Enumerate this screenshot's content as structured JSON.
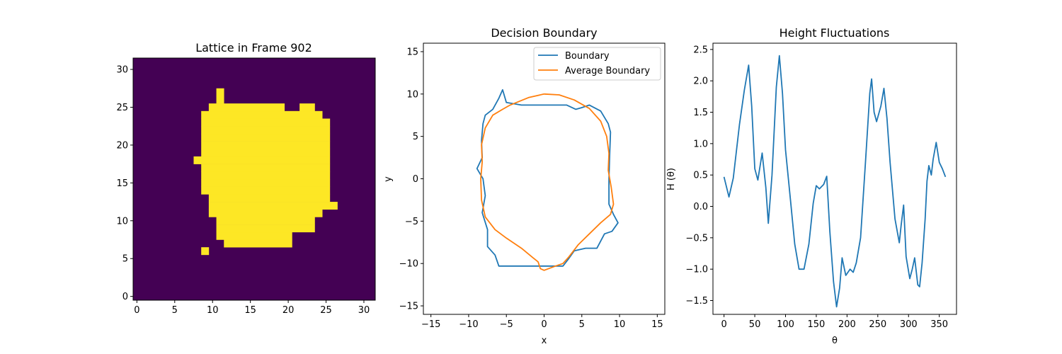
{
  "chart_data": [
    {
      "type": "heatmap",
      "title": "Lattice in Frame 902",
      "xlabel": "",
      "ylabel": "",
      "xlim": [
        -0.5,
        31.5
      ],
      "ylim": [
        -0.5,
        31.5
      ],
      "xticks": [
        0,
        5,
        10,
        15,
        20,
        25,
        30
      ],
      "yticks": [
        0,
        5,
        10,
        15,
        20,
        25,
        30
      ],
      "colors": {
        "empty": "#440154",
        "filled": "#fde725"
      },
      "filled_runs": [
        {
          "row": 6,
          "from": 9,
          "to": 9
        },
        {
          "row": 7,
          "from": 12,
          "to": 20
        },
        {
          "row": 8,
          "from": 11,
          "to": 20
        },
        {
          "row": 9,
          "from": 11,
          "to": 23
        },
        {
          "row": 10,
          "from": 11,
          "to": 23
        },
        {
          "row": 11,
          "from": 10,
          "to": 24
        },
        {
          "row": 12,
          "from": 10,
          "to": 26
        },
        {
          "row": 13,
          "from": 10,
          "to": 25
        },
        {
          "row": 14,
          "from": 9,
          "to": 25
        },
        {
          "row": 15,
          "from": 9,
          "to": 25
        },
        {
          "row": 16,
          "from": 9,
          "to": 25
        },
        {
          "row": 17,
          "from": 9,
          "to": 25
        },
        {
          "row": 18,
          "from": 8,
          "to": 25
        },
        {
          "row": 19,
          "from": 9,
          "to": 25
        },
        {
          "row": 20,
          "from": 9,
          "to": 25
        },
        {
          "row": 21,
          "from": 9,
          "to": 25
        },
        {
          "row": 22,
          "from": 9,
          "to": 25
        },
        {
          "row": 23,
          "from": 9,
          "to": 25
        },
        {
          "row": 24,
          "from": 9,
          "to": 24
        },
        {
          "row": 25,
          "from": 10,
          "to": 19
        },
        {
          "row": 25,
          "from": 22,
          "to": 23
        },
        {
          "row": 26,
          "from": 11,
          "to": 11
        },
        {
          "row": 27,
          "from": 11,
          "to": 11
        }
      ]
    },
    {
      "type": "line",
      "title": "Decision Boundary",
      "xlabel": "x",
      "ylabel": "y",
      "xlim": [
        -16,
        16
      ],
      "ylim": [
        -16,
        16
      ],
      "xticks": [
        -15,
        -10,
        -5,
        0,
        5,
        10,
        15
      ],
      "yticks": [
        -15,
        -10,
        -5,
        0,
        5,
        10,
        15
      ],
      "legend_position": "top-right",
      "series": [
        {
          "name": "Boundary",
          "color": "#1f77b4",
          "points": [
            [
              0,
              8.7
            ],
            [
              3,
              8.7
            ],
            [
              4.2,
              8.2
            ],
            [
              5,
              8.4
            ],
            [
              6,
              8.7
            ],
            [
              7.5,
              8.0
            ],
            [
              8.5,
              6.5
            ],
            [
              8.8,
              5.5
            ],
            [
              8.7,
              3
            ],
            [
              8.6,
              0
            ],
            [
              8.6,
              -3
            ],
            [
              9.2,
              -4.2
            ],
            [
              9.8,
              -5.2
            ],
            [
              9,
              -6.2
            ],
            [
              8,
              -6.5
            ],
            [
              7,
              -8.2
            ],
            [
              5.5,
              -8.2
            ],
            [
              4,
              -8.5
            ],
            [
              3.2,
              -9.5
            ],
            [
              2.5,
              -10.3
            ],
            [
              0,
              -10.3
            ],
            [
              -3,
              -10.3
            ],
            [
              -6,
              -10.3
            ],
            [
              -6.5,
              -9
            ],
            [
              -7.5,
              -8
            ],
            [
              -7.5,
              -6
            ],
            [
              -8.2,
              -4
            ],
            [
              -7.8,
              -2
            ],
            [
              -8.1,
              0
            ],
            [
              -8.9,
              1.2
            ],
            [
              -8.2,
              2.5
            ],
            [
              -8.3,
              4.5
            ],
            [
              -8.1,
              6.5
            ],
            [
              -7.8,
              7.5
            ],
            [
              -6.8,
              8.2
            ],
            [
              -6,
              9.5
            ],
            [
              -5.5,
              10.5
            ],
            [
              -5,
              9.0
            ],
            [
              -3,
              8.7
            ],
            [
              0,
              8.7
            ]
          ]
        },
        {
          "name": "Average Boundary",
          "color": "#ff7f0e",
          "points": [
            [
              0,
              10
            ],
            [
              2,
              9.9
            ],
            [
              4,
              9.3
            ],
            [
              6,
              8.3
            ],
            [
              7.5,
              6.8
            ],
            [
              8.3,
              5
            ],
            [
              8.6,
              3
            ],
            [
              8.5,
              1
            ],
            [
              8.9,
              -1
            ],
            [
              9.2,
              -3
            ],
            [
              8.8,
              -4.2
            ],
            [
              7.5,
              -5.2
            ],
            [
              6,
              -6.5
            ],
            [
              4.5,
              -7.8
            ],
            [
              3.3,
              -9.2
            ],
            [
              2.5,
              -10
            ],
            [
              1.5,
              -10.3
            ],
            [
              0,
              -10.8
            ],
            [
              -0.5,
              -10.6
            ],
            [
              -0.8,
              -9.8
            ],
            [
              -1.5,
              -9.3
            ],
            [
              -3,
              -8.2
            ],
            [
              -5,
              -7
            ],
            [
              -6.5,
              -6
            ],
            [
              -7.8,
              -4.5
            ],
            [
              -8.3,
              -2.5
            ],
            [
              -8.4,
              0
            ],
            [
              -8.2,
              2
            ],
            [
              -8.3,
              4
            ],
            [
              -7.8,
              6
            ],
            [
              -6.8,
              7.5
            ],
            [
              -5.5,
              8.2
            ],
            [
              -4.5,
              8.7
            ],
            [
              -2,
              9.6
            ],
            [
              0,
              10
            ]
          ]
        }
      ]
    },
    {
      "type": "line",
      "title": "Height Fluctuations",
      "xlabel": "θ",
      "ylabel": "H (θ)",
      "xlim": [
        -18,
        378
      ],
      "ylim": [
        -1.72,
        2.6
      ],
      "xticks": [
        0,
        50,
        100,
        150,
        200,
        250,
        300,
        350
      ],
      "yticks": [
        -1.5,
        -1.0,
        -0.5,
        0.0,
        0.5,
        1.0,
        1.5,
        2.0,
        2.5
      ],
      "series": [
        {
          "color": "#1f77b4",
          "points": [
            [
              0,
              0.47
            ],
            [
              8,
              0.15
            ],
            [
              15,
              0.45
            ],
            [
              25,
              1.3
            ],
            [
              33,
              1.85
            ],
            [
              40,
              2.25
            ],
            [
              45,
              1.6
            ],
            [
              50,
              0.6
            ],
            [
              55,
              0.42
            ],
            [
              62,
              0.85
            ],
            [
              68,
              0.3
            ],
            [
              72,
              -0.27
            ],
            [
              78,
              0.5
            ],
            [
              85,
              1.9
            ],
            [
              90,
              2.4
            ],
            [
              95,
              1.8
            ],
            [
              100,
              0.9
            ],
            [
              108,
              0.1
            ],
            [
              115,
              -0.6
            ],
            [
              122,
              -1.0
            ],
            [
              130,
              -1.0
            ],
            [
              138,
              -0.6
            ],
            [
              145,
              0.05
            ],
            [
              150,
              0.33
            ],
            [
              155,
              0.28
            ],
            [
              162,
              0.35
            ],
            [
              167,
              0.48
            ],
            [
              172,
              -0.4
            ],
            [
              178,
              -1.2
            ],
            [
              183,
              -1.6
            ],
            [
              188,
              -1.3
            ],
            [
              192,
              -0.82
            ],
            [
              198,
              -1.1
            ],
            [
              205,
              -1.0
            ],
            [
              210,
              -1.05
            ],
            [
              215,
              -0.9
            ],
            [
              222,
              -0.5
            ],
            [
              230,
              0.7
            ],
            [
              237,
              1.8
            ],
            [
              240,
              2.03
            ],
            [
              244,
              1.5
            ],
            [
              248,
              1.35
            ],
            [
              255,
              1.6
            ],
            [
              260,
              1.88
            ],
            [
              265,
              1.4
            ],
            [
              270,
              0.7
            ],
            [
              278,
              -0.2
            ],
            [
              285,
              -0.58
            ],
            [
              288,
              -0.3
            ],
            [
              292,
              0.02
            ],
            [
              296,
              -0.8
            ],
            [
              302,
              -1.15
            ],
            [
              306,
              -1.0
            ],
            [
              310,
              -0.82
            ],
            [
              315,
              -1.25
            ],
            [
              318,
              -1.28
            ],
            [
              322,
              -0.9
            ],
            [
              327,
              -0.2
            ],
            [
              330,
              0.4
            ],
            [
              333,
              0.65
            ],
            [
              337,
              0.5
            ],
            [
              340,
              0.75
            ],
            [
              345,
              1.02
            ],
            [
              350,
              0.7
            ],
            [
              355,
              0.6
            ],
            [
              360,
              0.47
            ]
          ]
        }
      ]
    }
  ]
}
